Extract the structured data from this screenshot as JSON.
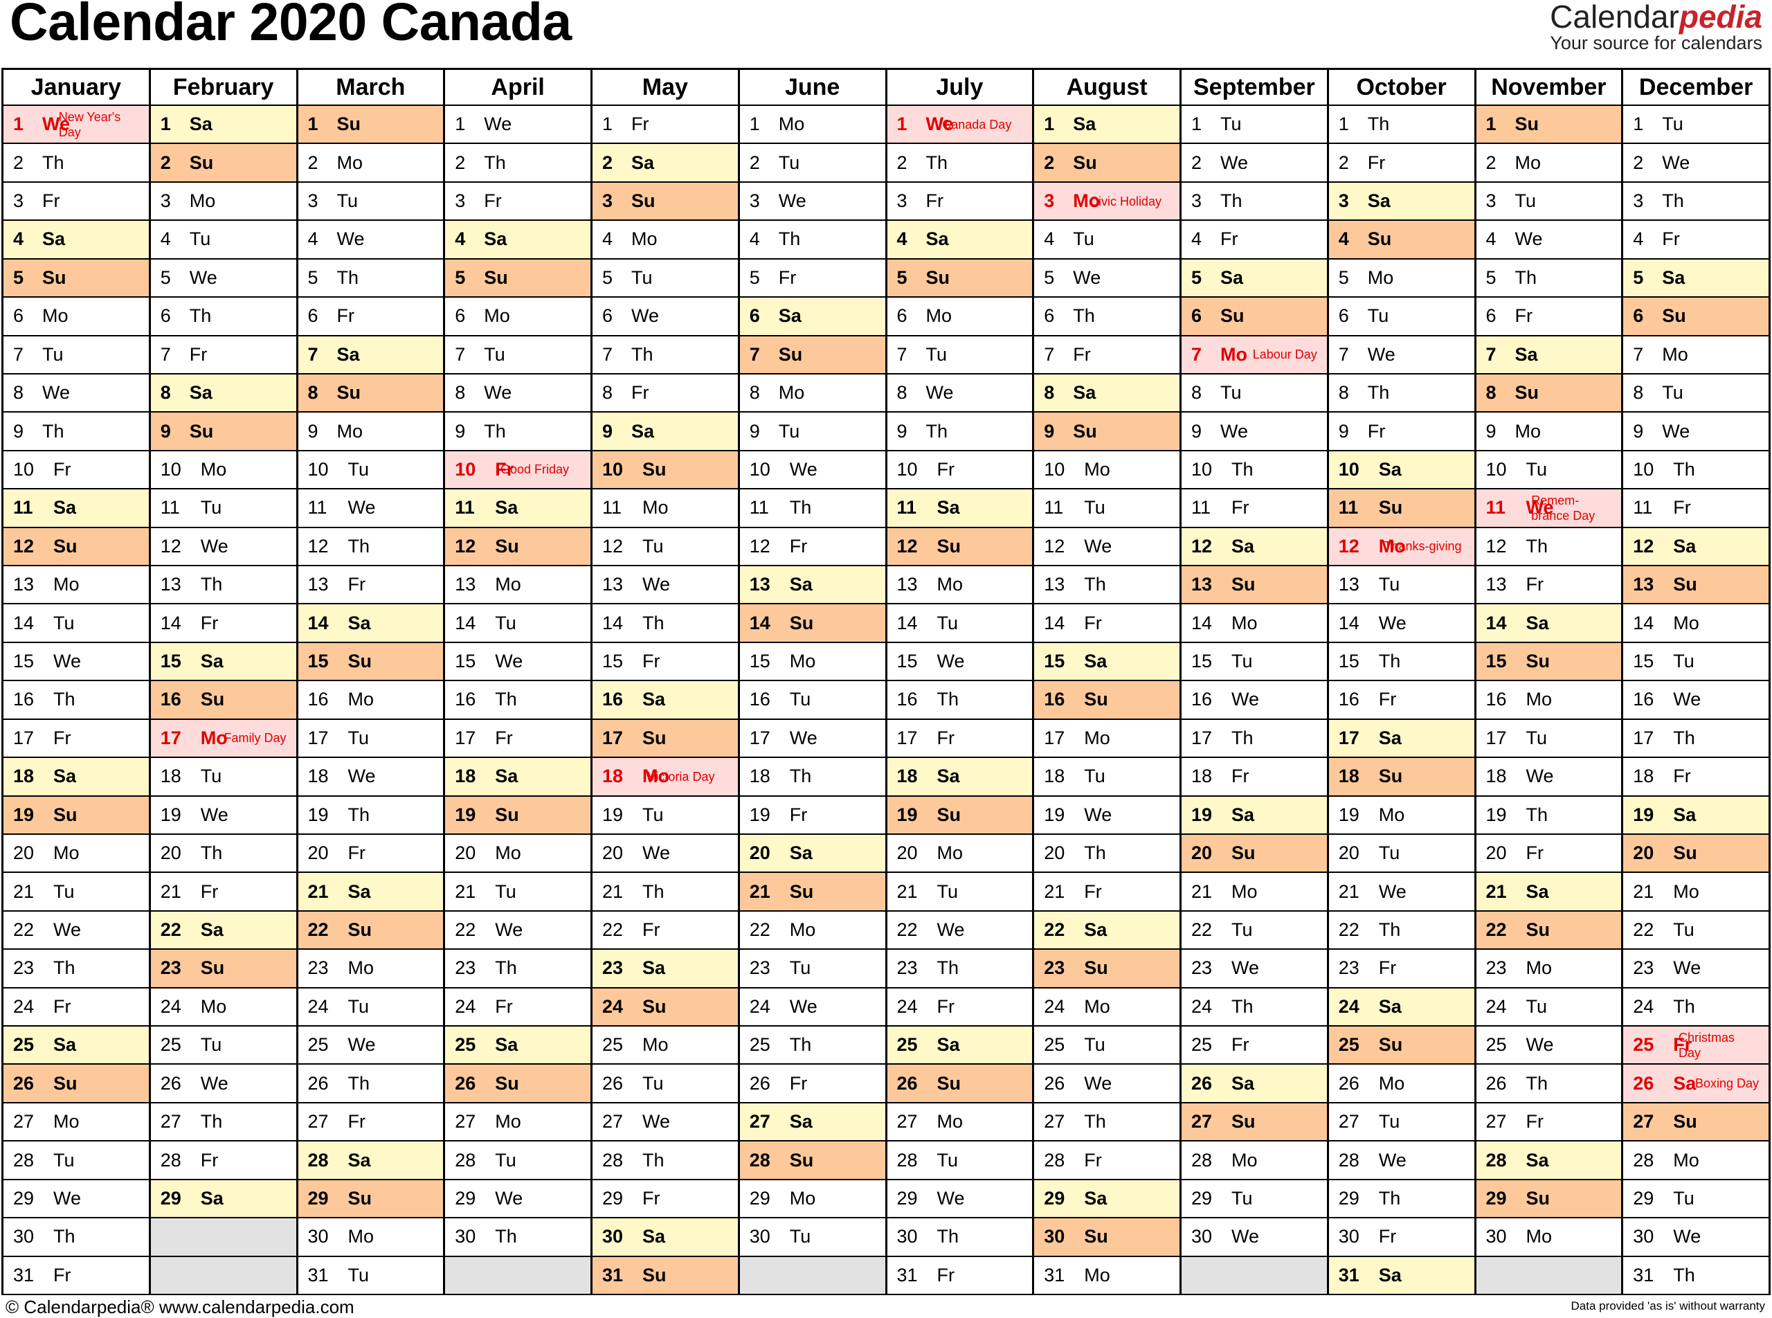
{
  "title": "Calendar 2020 Canada",
  "brand": {
    "name_part1": "Calendar",
    "name_part2": "pedia",
    "tagline": "Your source for calendars"
  },
  "footer": {
    "left": "© Calendarpedia®   www.calendarpedia.com",
    "right": "Data provided 'as is' without warranty"
  },
  "colors": {
    "saturday": "#fff9c9",
    "sunday": "#fdc99b",
    "holiday": "#ffdcdc",
    "holiday_text": "#e00000",
    "empty": "#e2e2e2"
  },
  "months": [
    {
      "name": "January",
      "first_weekday": 2,
      "days": 31
    },
    {
      "name": "February",
      "first_weekday": 5,
      "days": 29
    },
    {
      "name": "March",
      "first_weekday": 6,
      "days": 31
    },
    {
      "name": "April",
      "first_weekday": 2,
      "days": 30
    },
    {
      "name": "May",
      "first_weekday": 4,
      "days": 31
    },
    {
      "name": "June",
      "first_weekday": 0,
      "days": 30
    },
    {
      "name": "July",
      "first_weekday": 2,
      "days": 31
    },
    {
      "name": "August",
      "first_weekday": 5,
      "days": 31
    },
    {
      "name": "September",
      "first_weekday": 1,
      "days": 30
    },
    {
      "name": "October",
      "first_weekday": 3,
      "days": 31
    },
    {
      "name": "November",
      "first_weekday": 6,
      "days": 30
    },
    {
      "name": "December",
      "first_weekday": 1,
      "days": 31
    }
  ],
  "weekday_abbr": [
    "Mo",
    "Tu",
    "We",
    "Th",
    "Fr",
    "Sa",
    "Su"
  ],
  "holidays": [
    {
      "month": 1,
      "day": 1,
      "name": "New Year's Day"
    },
    {
      "month": 2,
      "day": 17,
      "name": "Family Day"
    },
    {
      "month": 4,
      "day": 10,
      "name": "Good Friday"
    },
    {
      "month": 5,
      "day": 18,
      "name": "Victoria Day"
    },
    {
      "month": 7,
      "day": 1,
      "name": "Canada Day"
    },
    {
      "month": 8,
      "day": 3,
      "name": "Civic Holiday"
    },
    {
      "month": 9,
      "day": 7,
      "name": "Labour Day"
    },
    {
      "month": 10,
      "day": 12,
      "name": "Thanks-giving"
    },
    {
      "month": 11,
      "day": 11,
      "name": "Remem-brance Day"
    },
    {
      "month": 12,
      "day": 25,
      "name": "Christmas Day"
    },
    {
      "month": 12,
      "day": 26,
      "name": "Boxing Day"
    }
  ]
}
